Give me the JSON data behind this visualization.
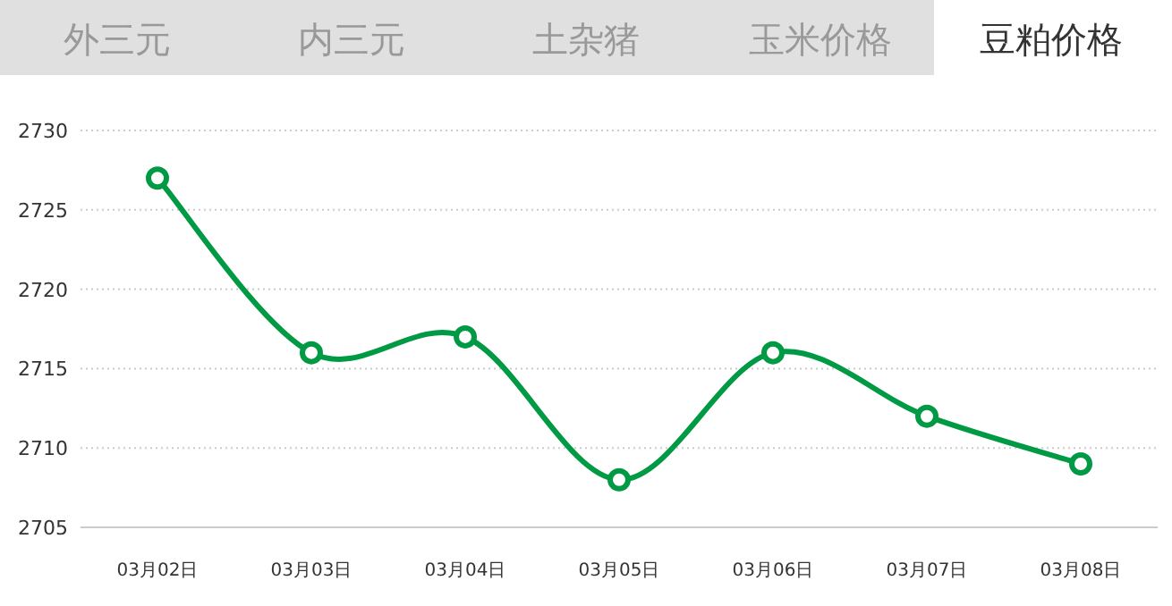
{
  "chart_data": {
    "type": "line",
    "title": "豆粕价格",
    "annotations": [
      "外三元",
      "内三元",
      "土杂猪",
      "玉米价格"
    ],
    "categories": [
      "03月02日",
      "03月03日",
      "03月04日",
      "03月05日",
      "03月06日",
      "03月07日",
      "03月08日"
    ],
    "series": [
      {
        "color": "#009944",
        "values": [
          2727,
          2716,
          2717,
          2708,
          2716,
          2712,
          2709
        ]
      }
    ],
    "ylim": [
      2705,
      2730
    ],
    "yticks": [
      2705,
      2710,
      2715,
      2720,
      2725,
      2730
    ],
    "grid": "y",
    "marker": "circle",
    "line_style": "solid"
  }
}
